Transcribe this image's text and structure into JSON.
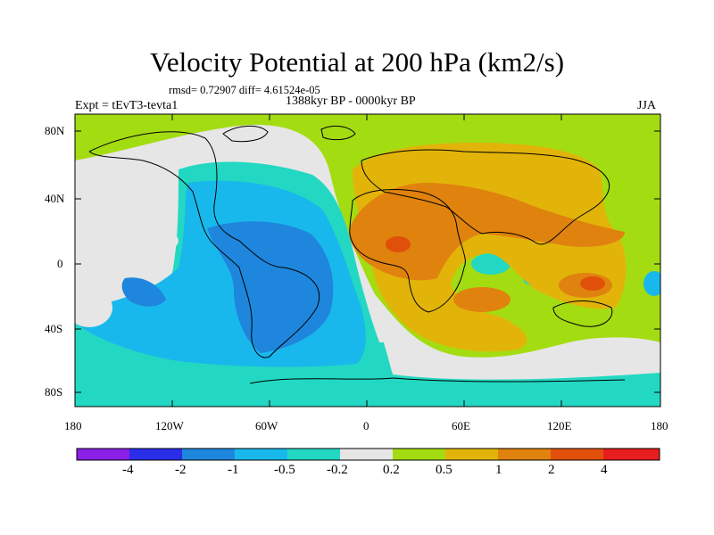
{
  "title": "Velocity Potential at 200 hPa (km2/s)",
  "stats": "rmsd= 0.72907 diff= 4.61524e-05",
  "period": "1388kyr BP - 0000kyr BP",
  "experiment": "Expt = tEvT3-tevta1",
  "season": "JJA",
  "lat_labels": [
    "80N",
    "40N",
    "0",
    "40S",
    "80S"
  ],
  "lon_labels": [
    "180",
    "120W",
    "60W",
    "0",
    "60E",
    "120E",
    "180"
  ],
  "colorbar": {
    "labels": [
      "-4",
      "-2",
      "-1",
      "-0.5",
      "-0.2",
      "0.2",
      "0.5",
      "1",
      "2",
      "4"
    ],
    "colors": [
      "#8a1fe8",
      "#2a2ee8",
      "#1e86dc",
      "#19b8ec",
      "#23d8c2",
      "#e6e6e6",
      "#a4dc12",
      "#e2b40a",
      "#e0820e",
      "#e0500a",
      "#e81e1e"
    ]
  }
}
